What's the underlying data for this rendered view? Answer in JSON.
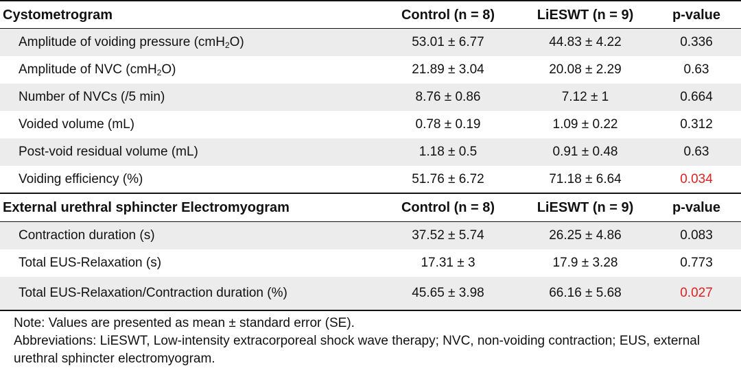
{
  "columns": {
    "control": "Control (n = 8)",
    "lieswt": "LiESWT (n = 9)",
    "pvalue": "p-value"
  },
  "sections": [
    {
      "title": "Cystometrogram",
      "rows": [
        {
          "label_pre": "Amplitude of voiding pressure (cmH",
          "label_sub": "2",
          "label_post": "O)",
          "control": "53.01 ± 6.77",
          "lieswt": "44.83 ± 4.22",
          "p": "0.336"
        },
        {
          "label_pre": "Amplitude of NVC (cmH",
          "label_sub": "2",
          "label_post": "O)",
          "control": "21.89 ± 3.04",
          "lieswt": "20.08 ± 2.29",
          "p": "0.63"
        },
        {
          "label_pre": "Number of NVCs (/5 min)",
          "label_sub": "",
          "label_post": "",
          "control": "8.76 ± 0.86",
          "lieswt": "7.12 ± 1",
          "p": "0.664"
        },
        {
          "label_pre": "Voided volume (mL)",
          "label_sub": "",
          "label_post": "",
          "control": "0.78 ± 0.19",
          "lieswt": "1.09 ± 0.22",
          "p": "0.312"
        },
        {
          "label_pre": "Post-void residual volume (mL)",
          "label_sub": "",
          "label_post": "",
          "control": "1.18 ± 0.5",
          "lieswt": "0.91 ± 0.48",
          "p": "0.63"
        },
        {
          "label_pre": "Voiding efficiency (%)",
          "label_sub": "",
          "label_post": "",
          "control": "51.76 ± 6.72",
          "lieswt": "71.18 ± 6.64",
          "p": "0.034"
        }
      ]
    },
    {
      "title": "External urethral sphincter Electromyogram",
      "rows": [
        {
          "label_pre": "Contraction duration (s)",
          "label_sub": "",
          "label_post": "",
          "control": "37.52 ± 5.74",
          "lieswt": "26.25 ± 4.86",
          "p": "0.083"
        },
        {
          "label_pre": "Total EUS-Relaxation (s)",
          "label_sub": "",
          "label_post": "",
          "control": "17.31 ± 3",
          "lieswt": "17.9 ± 3.28",
          "p": "0.773"
        },
        {
          "label_pre": "Total EUS-Relaxation/Contraction duration (%)",
          "label_sub": "",
          "label_post": "",
          "control": "45.65 ± 3.98",
          "lieswt": "66.16 ± 5.68",
          "p": "0.027"
        }
      ]
    }
  ],
  "notes": [
    "Note: Values are presented as mean ± standard error (SE).",
    "Abbreviations: LiESWT, Low-intensity extracorporeal shock wave therapy; NVC, non-voiding contraction; EUS, external urethral sphincter electromyogram."
  ],
  "colors": {
    "significant": "#e02020",
    "shade": "#ececec"
  }
}
